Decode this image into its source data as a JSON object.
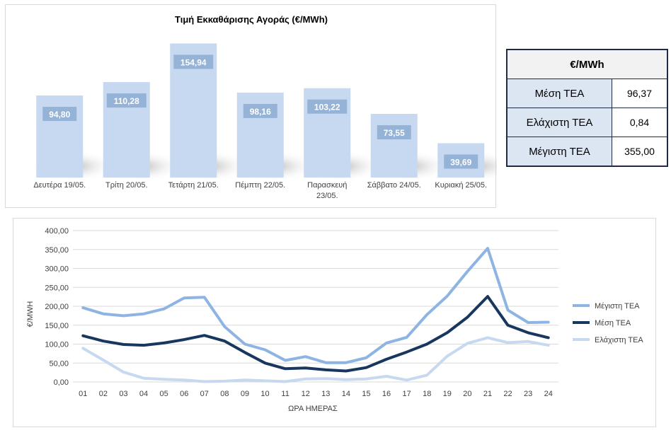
{
  "colors": {
    "bar_fill": "#c6d9f1",
    "bar_label_bg": "#95b3d7",
    "max_line": "#8eb4e3",
    "mean_line": "#17375e",
    "min_line": "#c6d9f1",
    "table_border": "#1f2a44",
    "table_label_bg": "#dce6f2"
  },
  "stats_table": {
    "header": "€/MWh",
    "rows": [
      {
        "label": "Μέση ΤΕΑ",
        "value": "96,37"
      },
      {
        "label": "Ελάχιστη ΤΕΑ",
        "value": "0,84"
      },
      {
        "label": "Μέγιστη ΤΕΑ",
        "value": "355,00"
      }
    ]
  },
  "chart_data": [
    {
      "type": "bar",
      "title": "Τιμή Εκκαθάρισης Αγοράς (€/MWh)",
      "categories": [
        "Δευτέρα 19/05.",
        "Τρίτη 20/05.",
        "Τετάρτη 21/05.",
        "Πέμπτη 22/05.",
        "Παρασκευή 23/05.",
        "Σάββατο 24/05.",
        "Κυριακή 25/05."
      ],
      "values": [
        94.8,
        110.28,
        154.94,
        98.16,
        103.22,
        73.55,
        39.69
      ],
      "value_labels": [
        "94,80",
        "110,28",
        "154,94",
        "98,16",
        "103,22",
        "73,55",
        "39,69"
      ],
      "ylim": [
        0,
        170
      ],
      "grid": false,
      "legend": "none"
    },
    {
      "type": "line",
      "xlabel": "ΩΡΑ ΗΜΕΡΑΣ",
      "ylabel": "€/MWH",
      "x": [
        "01",
        "02",
        "03",
        "04",
        "05",
        "06",
        "07",
        "08",
        "09",
        "10",
        "11",
        "12",
        "13",
        "14",
        "15",
        "16",
        "17",
        "18",
        "19",
        "20",
        "21",
        "22",
        "23",
        "24"
      ],
      "yticks": [
        "0,00",
        "50,00",
        "100,00",
        "150,00",
        "200,00",
        "250,00",
        "300,00",
        "350,00",
        "400,00"
      ],
      "ylim": [
        0,
        400
      ],
      "grid": true,
      "legend": "right",
      "series": [
        {
          "name": "Μέγιστη ΤΕΑ",
          "color": "#8eb4e3",
          "values": [
            196,
            180,
            175,
            180,
            193,
            222,
            224,
            146,
            100,
            85,
            57,
            67,
            51,
            51,
            64,
            103,
            118,
            178,
            227,
            292,
            353,
            190,
            157,
            158
          ]
        },
        {
          "name": "Μέση ΤΕΑ",
          "color": "#17375e",
          "values": [
            122,
            108,
            99,
            97,
            103,
            112,
            123,
            108,
            78,
            50,
            35,
            37,
            32,
            29,
            38,
            60,
            79,
            100,
            130,
            171,
            226,
            150,
            130,
            117
          ]
        },
        {
          "name": "Ελάχιστη ΤΕΑ",
          "color": "#c6d9f1",
          "values": [
            89,
            58,
            26,
            10,
            7,
            5,
            1,
            2,
            5,
            3,
            1,
            8,
            9,
            6,
            8,
            15,
            5,
            18,
            68,
            102,
            117,
            104,
            107,
            97
          ]
        }
      ]
    }
  ]
}
